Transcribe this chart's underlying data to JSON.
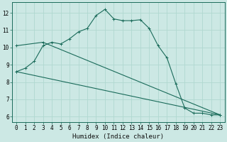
{
  "xlabel": "Humidex (Indice chaleur)",
  "bg_color": "#cce8e4",
  "grid_color": "#b0d8d0",
  "line_color": "#1a6b5a",
  "spine_color": "#1a6b5a",
  "xlim": [
    -0.5,
    23.5
  ],
  "ylim": [
    5.7,
    12.6
  ],
  "xticks": [
    0,
    1,
    2,
    3,
    4,
    5,
    6,
    7,
    8,
    9,
    10,
    11,
    12,
    13,
    14,
    15,
    16,
    17,
    18,
    19,
    20,
    21,
    22,
    23
  ],
  "yticks": [
    6,
    7,
    8,
    9,
    10,
    11,
    12
  ],
  "curve1_x": [
    0,
    1,
    2,
    3,
    4,
    5,
    6,
    7,
    8,
    9,
    10,
    11,
    12,
    13,
    14,
    15,
    16,
    17,
    18,
    19,
    20,
    21,
    22,
    23
  ],
  "curve1_y": [
    8.6,
    8.8,
    9.2,
    10.1,
    10.3,
    10.2,
    10.5,
    10.9,
    11.1,
    11.85,
    12.2,
    11.65,
    11.55,
    11.55,
    11.6,
    11.1,
    10.1,
    9.4,
    7.9,
    6.5,
    6.2,
    6.2,
    6.1,
    6.1
  ],
  "curve2_x": [
    0,
    23
  ],
  "curve2_y": [
    8.6,
    6.1
  ],
  "curve3_x": [
    0,
    3,
    23
  ],
  "curve3_y": [
    10.1,
    10.3,
    6.1
  ],
  "tick_fontsize": 5.5,
  "xlabel_fontsize": 6.5,
  "lw": 0.8,
  "marker_size": 3.0
}
